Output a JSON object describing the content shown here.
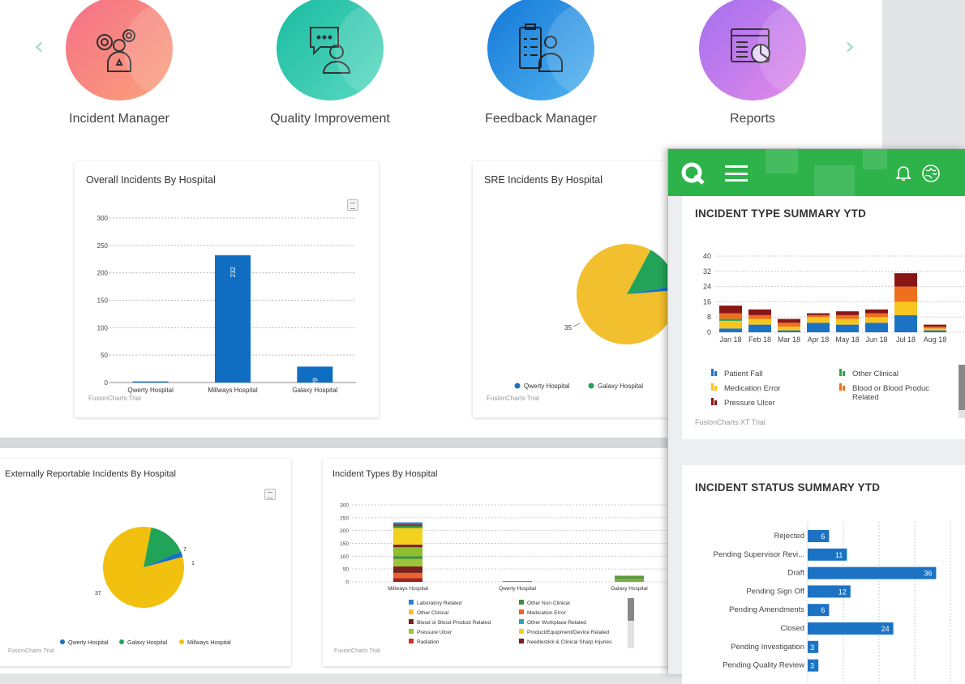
{
  "nav": {
    "prev_icon": "‹",
    "next_icon": "›"
  },
  "modules": [
    {
      "label": "Incident Manager",
      "icon": "gears-person-icon",
      "color": "#f47a8a"
    },
    {
      "label": "Quality Improvement",
      "icon": "chat-person-icon",
      "color": "#2cc6ae"
    },
    {
      "label": "Feedback Manager",
      "icon": "clipboard-person-icon",
      "color": "#2489e0"
    },
    {
      "label": "Reports",
      "icon": "report-pie-icon",
      "color": "#c77be8"
    }
  ],
  "cards": {
    "overall": {
      "title": "Overall Incidents By Hospital",
      "trial": "FusionCharts Trial"
    },
    "sre": {
      "title": "SRE Incidents By Hospital",
      "trial": "FusionCharts Trial"
    },
    "external": {
      "title": "Externally Reportable Incidents By Hospital",
      "trial": "FusionCharts Trial"
    },
    "types": {
      "title": "Incident Types By Hospital",
      "trial": "FusionCharts Trial"
    }
  },
  "panel": {
    "type_title": "INCIDENT TYPE SUMMARY YTD",
    "status_title": "INCIDENT STATUS SUMMARY YTD",
    "trial": "FusionCharts XT Trial"
  },
  "chart_data": [
    {
      "id": "overall",
      "type": "bar",
      "title": "Overall Incidents By Hospital",
      "categories": [
        "Qwerty Hospital",
        "Millways Hospital",
        "Galaxy Hospital"
      ],
      "values": [
        2,
        232,
        29
      ],
      "data_labels": [
        "",
        "232",
        "29"
      ],
      "ylim": [
        0,
        300
      ],
      "yticks": [
        0,
        50,
        100,
        150,
        200,
        250,
        300
      ],
      "color": "#0f6ec2"
    },
    {
      "id": "sre",
      "type": "pie",
      "title": "SRE Incidents By Hospital",
      "legend": [
        "Qwerty Hospital",
        "Galaxy Hospital"
      ],
      "slices": [
        {
          "name": "Millways Hospital",
          "value": 35,
          "color": "#f2c02e"
        },
        {
          "name": "Galaxy Hospital",
          "value": 6,
          "color": "#22a458"
        },
        {
          "name": "Qwerty Hospital",
          "value": 0.6,
          "color": "#1a6fbf"
        }
      ],
      "labels": [
        "35"
      ]
    },
    {
      "id": "external",
      "type": "pie",
      "title": "Externally Reportable Incidents By Hospital",
      "legend": [
        "Qwerty Hospital",
        "Galaxy Hospital",
        "Millways Hospital"
      ],
      "slices": [
        {
          "name": "Millways Hospital",
          "value": 37,
          "color": "#f2c00e"
        },
        {
          "name": "Galaxy Hospital",
          "value": 7,
          "color": "#22a458"
        },
        {
          "name": "Qwerty Hospital",
          "value": 1,
          "color": "#1a6fbf"
        }
      ],
      "labels": [
        "37",
        "7",
        "1"
      ]
    },
    {
      "id": "types",
      "type": "bar",
      "title": "Incident Types By Hospital",
      "categories": [
        "Millways Hospital",
        "Qwerty Hospital",
        "Galaxy Hospital"
      ],
      "ylim": [
        0,
        300
      ],
      "yticks": [
        0,
        50,
        100,
        150,
        200,
        250,
        300
      ],
      "stacks": [
        [
          {
            "v": 15,
            "c": "#a41f1f"
          },
          {
            "v": 20,
            "c": "#e8642b"
          },
          {
            "v": 25,
            "c": "#7b1f1f"
          },
          {
            "v": 30,
            "c": "#9cc43b"
          },
          {
            "v": 10,
            "c": "#3e8f3e"
          },
          {
            "v": 35,
            "c": "#8cbf30"
          },
          {
            "v": 10,
            "c": "#7b1f1f"
          },
          {
            "v": 65,
            "c": "#f2d21e"
          },
          {
            "v": 8,
            "c": "#3e8f3e"
          },
          {
            "v": 6,
            "c": "#a41f1f"
          },
          {
            "v": 8,
            "c": "#2f7fd0"
          }
        ],
        [
          {
            "v": 3,
            "c": "#5a9a3a"
          }
        ],
        [
          {
            "v": 12,
            "c": "#7cab4a"
          },
          {
            "v": 12,
            "c": "#5a9a3a"
          }
        ]
      ],
      "legend": [
        "Laboratory Related",
        "Other Non Clinical",
        "Other Clinical",
        "Medication Error",
        "Blood or Blood Product Related",
        "Other Workplace Related",
        "Pressure Ulcer",
        "Product/Equipment/Device Related",
        "Radiation",
        "Needlestick & Clinical Sharp Injuries"
      ],
      "legend_colors": [
        "#2f7fd0",
        "#3e8f3e",
        "#f2c02e",
        "#e8642b",
        "#7b1f1f",
        "#3aa0b0",
        "#9cc43b",
        "#f2d21e",
        "#d03030",
        "#7b1f1f"
      ]
    },
    {
      "id": "type_summary",
      "type": "bar",
      "title": "INCIDENT TYPE SUMMARY YTD",
      "categories": [
        "Jan 18",
        "Feb 18",
        "Mar 18",
        "Apr 18",
        "May 18",
        "Jun 18",
        "Jul 18",
        "Aug 18"
      ],
      "ylim": [
        0,
        40
      ],
      "yticks": [
        0,
        8,
        16,
        24,
        32,
        40
      ],
      "series": [
        {
          "name": "Patient Fall",
          "color": "#1c73c4",
          "values": [
            2,
            4,
            1,
            5,
            4,
            5,
            9,
            1
          ]
        },
        {
          "name": "Medication Error",
          "color": "#f7c51e",
          "values": [
            4,
            3,
            2,
            3,
            3,
            3,
            7,
            1
          ]
        },
        {
          "name": "Other Clinical",
          "color": "#2aa44a",
          "values": [
            1,
            0,
            0,
            0,
            0,
            0,
            0,
            0
          ]
        },
        {
          "name": "Blood or Blood Product Related",
          "color": "#ee6f1e",
          "values": [
            3,
            2,
            2,
            1,
            2,
            2,
            8,
            1
          ]
        },
        {
          "name": "Pressure Ulcer",
          "color": "#8a1515",
          "values": [
            4,
            3,
            2,
            1,
            2,
            2,
            7,
            1
          ]
        }
      ],
      "legend": [
        "Patient Fall",
        "Other Clinical",
        "Medication Error",
        "Blood or Blood Product Related",
        "Pressure Ulcer"
      ]
    },
    {
      "id": "status_summary",
      "type": "bar",
      "orientation": "horizontal",
      "title": "INCIDENT STATUS SUMMARY YTD",
      "categories": [
        "Rejected",
        "Pending Supervisor Revi...",
        "Draft",
        "Pending Sign Off",
        "Pending Amendments",
        "Closed",
        "Pending Investigation",
        "Pending Quality Review"
      ],
      "values": [
        6,
        11,
        36,
        12,
        6,
        24,
        3,
        3
      ],
      "color": "#1c73c4"
    }
  ]
}
